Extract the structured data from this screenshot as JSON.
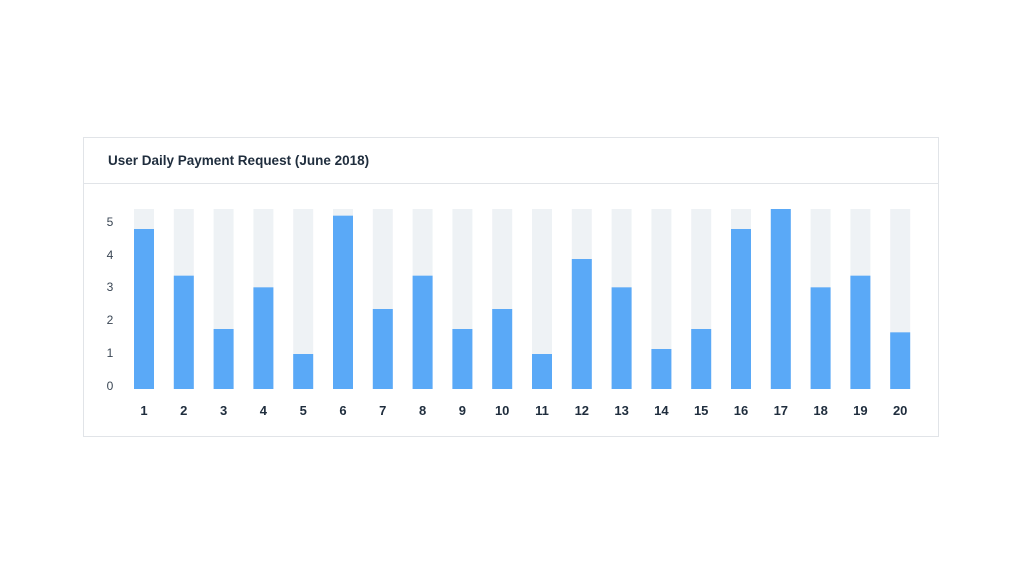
{
  "chart_data": {
    "type": "bar",
    "title": "User Daily Payment Request (June 2018)",
    "xlabel": "",
    "ylabel": "",
    "categories": [
      "1",
      "2",
      "3",
      "4",
      "5",
      "6",
      "7",
      "8",
      "9",
      "10",
      "11",
      "12",
      "13",
      "14",
      "15",
      "16",
      "17",
      "18",
      "19",
      "20"
    ],
    "values": [
      4.8,
      3.4,
      1.8,
      3.05,
      1.05,
      5.2,
      2.4,
      3.4,
      1.8,
      2.4,
      1.05,
      3.9,
      3.05,
      1.2,
      1.8,
      4.8,
      5.4,
      3.05,
      3.4,
      1.7
    ],
    "yticks": [
      "0",
      "1",
      "2",
      "3",
      "4",
      "5"
    ],
    "ylim": [
      0,
      5.4
    ],
    "grid": false,
    "legend": "none",
    "colors": {
      "bar": "#5aa9f7",
      "track": "#eef2f5"
    }
  }
}
